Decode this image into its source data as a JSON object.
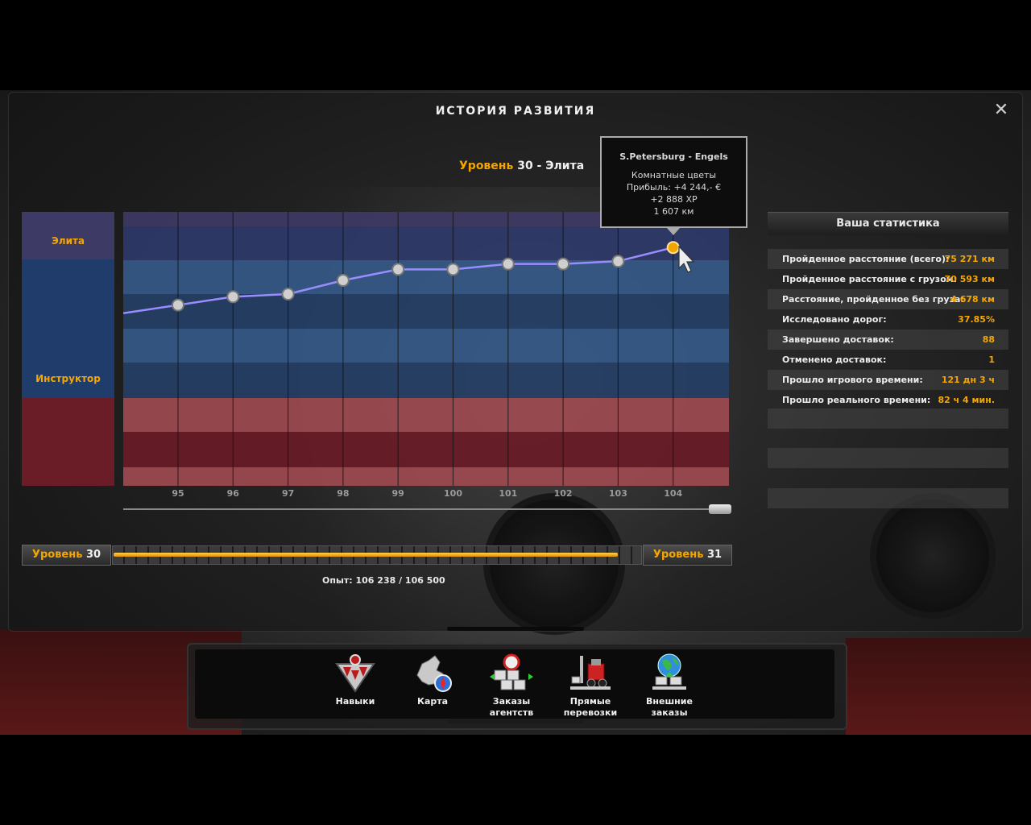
{
  "window": {
    "title": "ИСТОРИЯ РАЗВИТИЯ",
    "close_label": "✕"
  },
  "level_heading": {
    "label": "Уровень",
    "value": "30 - Элита"
  },
  "legend": {
    "elite": "Элита",
    "instructor": "Инструктор"
  },
  "chart_data": {
    "type": "line",
    "x": [
      95,
      96,
      97,
      98,
      99,
      100,
      101,
      102,
      103,
      104
    ],
    "x_tick_labels": [
      "95",
      "96",
      "97",
      "98",
      "99",
      "100",
      "101",
      "102",
      "103",
      "104"
    ],
    "values": [
      0.66,
      0.69,
      0.7,
      0.75,
      0.79,
      0.79,
      0.81,
      0.81,
      0.82,
      0.87
    ],
    "series_color": "#9a8cff",
    "selected_point": 104,
    "bands": [
      {
        "color": "#3e3a66"
      },
      {
        "color": "#2e3a6a"
      },
      {
        "color": "#345a8a"
      },
      {
        "color": "#243f66"
      },
      {
        "color": "#345a8a"
      },
      {
        "color": "#243f66"
      },
      {
        "color": "#a04a50"
      },
      {
        "color": "#6a1c27"
      },
      {
        "color": "#a04a50"
      }
    ]
  },
  "tooltip": {
    "route": "S.Petersburg - Engels",
    "cargo": "Комнатные цветы",
    "profit": "Прибыль: +4 244,- €",
    "xp": "+2 888 XP",
    "distance": "1 607 км"
  },
  "stats": {
    "header": "Ваша статистика",
    "rows": [
      {
        "label": "Пройденное расстояние (всего):",
        "value": "75 271 км"
      },
      {
        "label": "Пройденное расстояние с грузом:",
        "value": "70 593 км"
      },
      {
        "label": "Расстояние, пройденное без груза:",
        "value": "4 678 км"
      },
      {
        "label": "Исследовано дорог:",
        "value": "37.85%"
      },
      {
        "label": "Завершено доставок:",
        "value": "88"
      },
      {
        "label": "Отменено доставок:",
        "value": "1"
      },
      {
        "label": "Прошло игрового времени:",
        "value": "121 дн 3 ч"
      },
      {
        "label": "Прошло реального времени:",
        "value": "82 ч 4 мин."
      }
    ]
  },
  "xp_bar": {
    "left_label": "Уровень",
    "left_num": "30",
    "right_label": "Уровень",
    "right_num": "31",
    "progress": 0.9975,
    "text": "Опыт: 106 238 / 106 500"
  },
  "dock": {
    "items": [
      {
        "label": "Навыки",
        "icon": "skills-icon"
      },
      {
        "label": "Карта",
        "icon": "map-icon"
      },
      {
        "label": "Заказы\nагентств",
        "icon": "agency-orders-icon"
      },
      {
        "label": "Прямые\nперевозки",
        "icon": "freight-market-icon"
      },
      {
        "label": "Внешние\nзаказы",
        "icon": "external-contracts-icon"
      }
    ]
  }
}
